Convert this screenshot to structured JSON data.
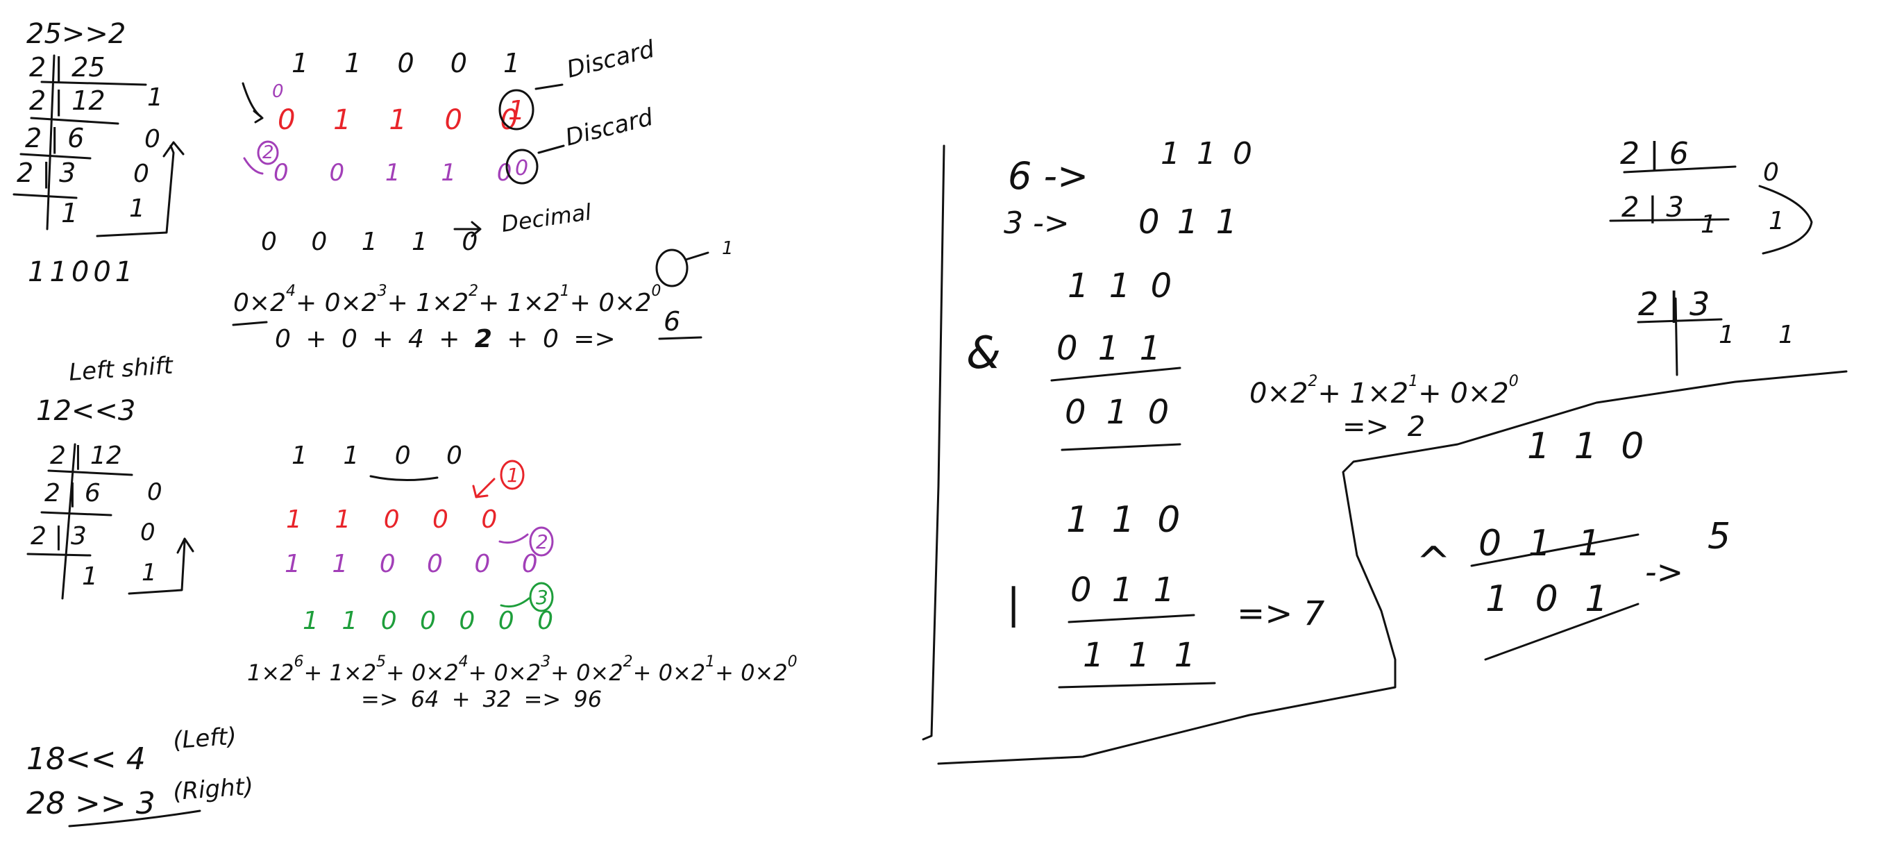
{
  "colors": {
    "background": "#ffffff",
    "ink_black": "#111111",
    "ink_red": "#e8242a",
    "ink_purple": "#a23fb8",
    "ink_green": "#1e9e3b"
  },
  "right_shift_example": {
    "problem": "25>>2",
    "division": {
      "rows": [
        "2 | 25",
        "2 | 12",
        "2 | 6",
        "2 | 3",
        "1"
      ],
      "remainders": [
        "1",
        "0",
        "0",
        "1"
      ]
    },
    "binary_result": "11001",
    "original_bits": "1 1 0 0 1",
    "shift1_prefix": "0",
    "shift1_bits": "0 1 1 0 0",
    "shift1_dropped": "1",
    "shift1_note": "Discard",
    "shift2_prefix": "2",
    "shift2_bits": "0 0 1 1 0",
    "shift2_dropped": "0",
    "shift2_note": "Discard",
    "final_bits": "0 0 1 1 0",
    "final_note": "Decimal",
    "expansion_terms": [
      {
        "coef": "0",
        "base": "2",
        "exp": "4"
      },
      {
        "coef": "0",
        "base": "2",
        "exp": "3"
      },
      {
        "coef": "1",
        "base": "2",
        "exp": "2"
      },
      {
        "coef": "1",
        "base": "2",
        "exp": "1"
      },
      {
        "coef": "0",
        "base": "2",
        "exp": "0"
      }
    ],
    "zero_exp_note": "1",
    "sum_terms": [
      "0",
      "0",
      "4",
      "2",
      "0"
    ],
    "result": "6"
  },
  "left_shift_example": {
    "heading": "Left shift",
    "problem": "12<<3",
    "division": {
      "rows": [
        "2 | 12",
        "2 | 6",
        "2 | 3",
        "1"
      ],
      "remainders": [
        "0",
        "0",
        "1"
      ]
    },
    "original_bits": "1 1 0 0",
    "shift1_bits": "1 1 0 0 0",
    "shift1_label": "1",
    "shift2_bits": "1 1 0 0 0 0",
    "shift2_label": "2",
    "shift3_bits": "1 1 0 0 0 0 0",
    "shift3_label": "3",
    "expansion_terms": [
      {
        "coef": "1",
        "base": "2",
        "exp": "6"
      },
      {
        "coef": "1",
        "base": "2",
        "exp": "5"
      },
      {
        "coef": "0",
        "base": "2",
        "exp": "4"
      },
      {
        "coef": "0",
        "base": "2",
        "exp": "3"
      },
      {
        "coef": "0",
        "base": "2",
        "exp": "2"
      },
      {
        "coef": "0",
        "base": "2",
        "exp": "1"
      },
      {
        "coef": "0",
        "base": "2",
        "exp": "0"
      }
    ],
    "sum_line": "=> 64 + 32 => 96"
  },
  "exercises": {
    "line1": "18<< 4",
    "line1_note": "(Left)",
    "line2": "28 >> 3",
    "line2_note": "(Right)"
  },
  "bitwise_panel": {
    "six_label": "6 ->",
    "six_bits": "1 1 0",
    "three_label": "3 ->",
    "three_bits": "0 1 1",
    "div_six": {
      "rows": [
        "2 | 6",
        "2 | 3",
        "1"
      ],
      "remainders": [
        "0",
        "1"
      ]
    },
    "div_three": {
      "rows": [
        "2 | 3",
        "1"
      ],
      "remainders": [
        "1"
      ]
    },
    "and_op": "&",
    "and_top": "1 1 0",
    "and_bottom": "0 1 1",
    "and_result": "0 1 0",
    "and_expansion": [
      {
        "coef": "0",
        "base": "2",
        "exp": "2"
      },
      {
        "coef": "1",
        "base": "2",
        "exp": "1"
      },
      {
        "coef": "0",
        "base": "2",
        "exp": "0"
      }
    ],
    "and_decimal": "=> 2",
    "or_op": "|",
    "or_top": "1 1 0",
    "or_bottom": "0 1 1",
    "or_result": "1 1 1",
    "or_decimal": "=> 7",
    "xor_op": "^",
    "xor_top": "1 1 0",
    "xor_bottom": "0 1 1",
    "xor_result": "1 0 1",
    "xor_arrow": "->",
    "xor_decimal": "5"
  }
}
